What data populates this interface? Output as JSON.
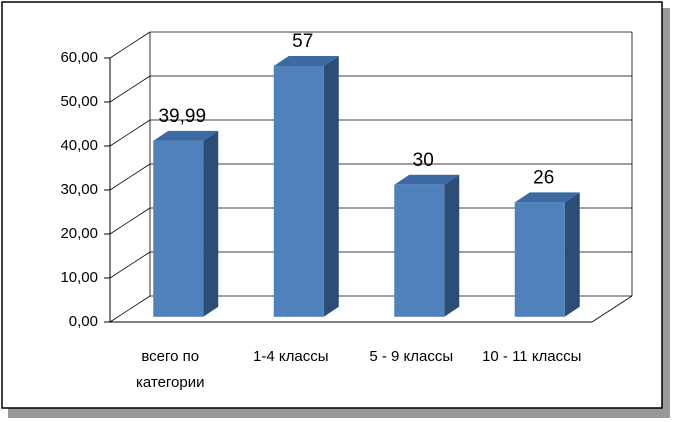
{
  "chart_data": {
    "type": "bar3d",
    "categories": [
      "всего по категории",
      "1-4 классы",
      "5 - 9 классы",
      "10 - 11 классы"
    ],
    "values": [
      39.99,
      57,
      30,
      26
    ],
    "value_labels": [
      "39,99",
      "57",
      "30",
      "26"
    ],
    "color": "#4f81bd",
    "ylim": [
      0,
      60
    ],
    "yticks": [
      {
        "value": 0,
        "label": "0,00"
      },
      {
        "value": 10,
        "label": "10,00"
      },
      {
        "value": 20,
        "label": "20,00"
      },
      {
        "value": 30,
        "label": "30,00"
      },
      {
        "value": 40,
        "label": "40,00"
      },
      {
        "value": 50,
        "label": "50,00"
      },
      {
        "value": 60,
        "label": "60,00"
      }
    ],
    "grid": true
  }
}
